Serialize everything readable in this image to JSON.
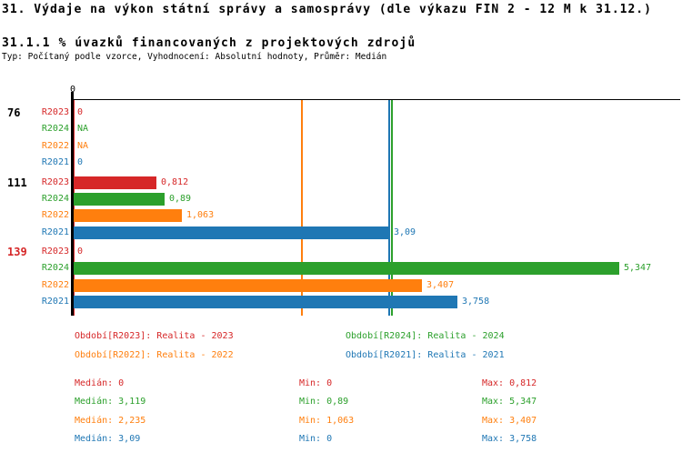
{
  "title": "31. Výdaje na výkon státní správy a samosprávy (dle výkazu FIN 2 - 12 M k 31.12.)",
  "subtitle": "31.1.1 % úvazků financovaných z projektových zdrojů",
  "meta": "Typ: Počítaný podle vzorce, Vyhodnocení: Absolutní hodnoty, Průměr: Medián",
  "colors": {
    "R2023": "#d62728",
    "R2024": "#2ca02c",
    "R2022": "#ff7f0e",
    "R2021": "#1f77b4",
    "axis": "#000000",
    "group_label_default": "#000000",
    "group_label_highlight": "#d62728"
  },
  "chart_data": {
    "type": "bar",
    "orientation": "horizontal",
    "xlabel": "",
    "ylabel": "",
    "x_axis_tick_labels": [
      "0"
    ],
    "xlim": [
      0,
      5.9
    ],
    "series_order": [
      "R2023",
      "R2024",
      "R2022",
      "R2021"
    ],
    "groups": [
      {
        "label": "76",
        "label_color": "#000000",
        "bars": [
          {
            "series": "R2023",
            "value": 0,
            "display": "0"
          },
          {
            "series": "R2024",
            "value": null,
            "display": "NA"
          },
          {
            "series": "R2022",
            "value": null,
            "display": "NA"
          },
          {
            "series": "R2021",
            "value": 0,
            "display": "0"
          }
        ]
      },
      {
        "label": "111",
        "label_color": "#000000",
        "bars": [
          {
            "series": "R2023",
            "value": 0.812,
            "display": "0,812"
          },
          {
            "series": "R2024",
            "value": 0.89,
            "display": "0,89"
          },
          {
            "series": "R2022",
            "value": 1.063,
            "display": "1,063"
          },
          {
            "series": "R2021",
            "value": 3.09,
            "display": "3,09"
          }
        ]
      },
      {
        "label": "139",
        "label_color": "#d62728",
        "bars": [
          {
            "series": "R2023",
            "value": 0,
            "display": "0"
          },
          {
            "series": "R2024",
            "value": 5.347,
            "display": "5,347"
          },
          {
            "series": "R2022",
            "value": 3.407,
            "display": "3,407"
          },
          {
            "series": "R2021",
            "value": 3.758,
            "display": "3,758"
          }
        ]
      }
    ],
    "median_lines": [
      {
        "series": "R2023",
        "value": 0
      },
      {
        "series": "R2022",
        "value": 2.235
      },
      {
        "series": "R2021",
        "value": 3.09
      },
      {
        "series": "R2024",
        "value": 3.119
      }
    ]
  },
  "legend": [
    {
      "series": "R2023",
      "label": "Období[R2023]: Realita - 2023"
    },
    {
      "series": "R2024",
      "label": "Období[R2024]: Realita - 2024"
    },
    {
      "series": "R2022",
      "label": "Období[R2022]: Realita - 2022"
    },
    {
      "series": "R2021",
      "label": "Období[R2021]: Realita - 2021"
    }
  ],
  "stats": [
    {
      "series": "R2023",
      "median": "Medián: 0",
      "min": "Min: 0",
      "max": "Max: 0,812"
    },
    {
      "series": "R2024",
      "median": "Medián: 3,119",
      "min": "Min: 0,89",
      "max": "Max: 5,347"
    },
    {
      "series": "R2022",
      "median": "Medián: 2,235",
      "min": "Min: 1,063",
      "max": "Max: 3,407"
    },
    {
      "series": "R2021",
      "median": "Medián: 3,09",
      "min": "Min: 0",
      "max": "Max: 3,758"
    }
  ]
}
